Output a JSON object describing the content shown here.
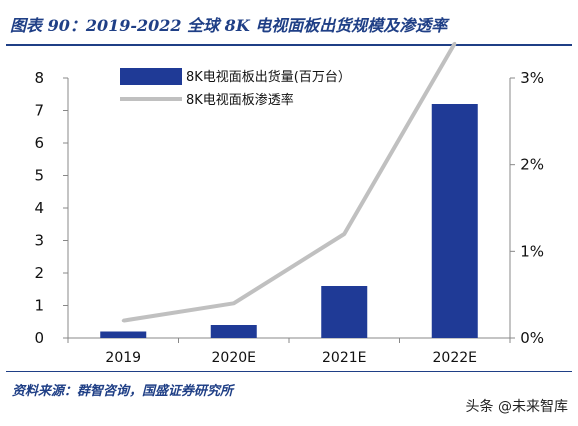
{
  "header": {
    "title": "图表 90：2019-2022 全球 8K 电视面板出货规模及渗透率"
  },
  "footer": {
    "source": "资料来源：群智咨询，国盛证券研究所",
    "watermark": "头条 @未来智库"
  },
  "colors": {
    "bar": "#1f3a96",
    "line": "#c0c0c0",
    "title": "#1f3f86"
  },
  "chart_data": {
    "type": "bar",
    "categories": [
      "2019",
      "2020E",
      "2021E",
      "2022E"
    ],
    "series": [
      {
        "name": "8K电视面板出货量(百万台）",
        "type": "bar",
        "axis": "left",
        "values": [
          0.2,
          0.4,
          1.6,
          7.2
        ]
      },
      {
        "name": "8K电视面板渗透率",
        "type": "line",
        "axis": "right",
        "values": [
          0.002,
          0.004,
          0.012,
          0.034
        ]
      }
    ],
    "y_left": {
      "min": 0,
      "max": 8,
      "ticks": [
        "0",
        "1",
        "2",
        "3",
        "4",
        "5",
        "6",
        "7",
        "8"
      ]
    },
    "y_right": {
      "min": 0,
      "max": 0.03,
      "ticks": [
        "0%",
        "1%",
        "2%",
        "3%"
      ]
    },
    "legend": "top-center",
    "grid": false
  }
}
